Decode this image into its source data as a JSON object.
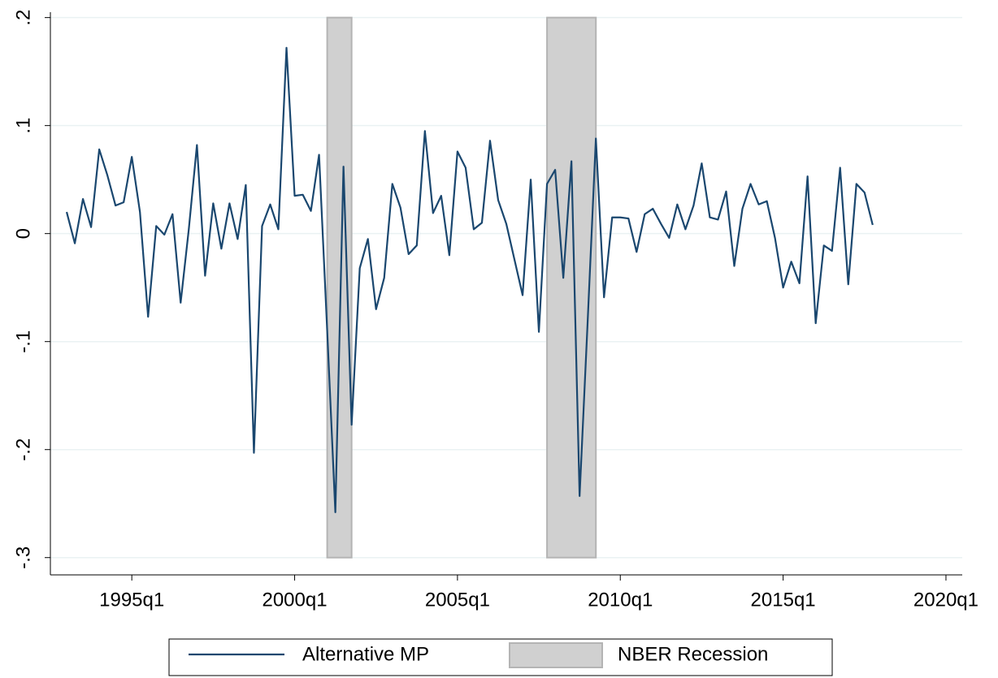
{
  "chart_data": {
    "type": "line",
    "x": [
      "1993q1",
      "1993q2",
      "1993q3",
      "1993q4",
      "1994q1",
      "1994q2",
      "1994q3",
      "1994q4",
      "1995q1",
      "1995q2",
      "1995q3",
      "1995q4",
      "1996q1",
      "1996q2",
      "1996q3",
      "1996q4",
      "1997q1",
      "1997q2",
      "1997q3",
      "1997q4",
      "1998q1",
      "1998q2",
      "1998q3",
      "1998q4",
      "1999q1",
      "1999q2",
      "1999q3",
      "1999q4",
      "2000q1",
      "2000q2",
      "2000q3",
      "2000q4",
      "2001q1",
      "2001q2",
      "2001q3",
      "2001q4",
      "2002q1",
      "2002q2",
      "2002q3",
      "2002q4",
      "2003q1",
      "2003q2",
      "2003q3",
      "2003q4",
      "2004q1",
      "2004q2",
      "2004q3",
      "2004q4",
      "2005q1",
      "2005q2",
      "2005q3",
      "2005q4",
      "2006q1",
      "2006q2",
      "2006q3",
      "2006q4",
      "2007q1",
      "2007q2",
      "2007q3",
      "2007q4",
      "2008q1",
      "2008q2",
      "2008q3",
      "2008q4",
      "2009q1",
      "2009q2",
      "2009q3",
      "2009q4",
      "2010q1",
      "2010q2",
      "2010q3",
      "2010q4",
      "2011q1",
      "2011q2",
      "2011q3",
      "2011q4",
      "2012q1",
      "2012q2",
      "2012q3",
      "2012q4",
      "2013q1",
      "2013q2",
      "2013q3",
      "2013q4",
      "2014q1",
      "2014q2",
      "2014q3",
      "2014q4",
      "2015q1",
      "2015q2",
      "2015q3",
      "2015q4",
      "2016q1",
      "2016q2",
      "2016q3",
      "2016q4",
      "2017q1",
      "2017q2",
      "2017q3",
      "2017q4"
    ],
    "series": [
      {
        "name": "Alternative MP",
        "color": "#1a476f",
        "values": [
          0.02,
          -0.009,
          0.032,
          0.006,
          0.078,
          0.054,
          0.026,
          0.029,
          0.071,
          0.02,
          -0.077,
          0.007,
          -0.001,
          0.018,
          -0.064,
          0.004,
          0.082,
          -0.039,
          0.028,
          -0.014,
          0.028,
          -0.005,
          0.045,
          -0.203,
          0.007,
          0.027,
          0.004,
          0.172,
          0.035,
          0.036,
          0.021,
          0.073,
          -0.09,
          -0.258,
          0.062,
          -0.177,
          -0.032,
          -0.005,
          -0.07,
          -0.041,
          0.046,
          0.024,
          -0.019,
          -0.011,
          0.095,
          0.019,
          0.035,
          -0.02,
          0.076,
          0.061,
          0.004,
          0.01,
          0.086,
          0.031,
          0.009,
          -0.024,
          -0.057,
          0.05,
          -0.091,
          0.046,
          0.059,
          -0.041,
          0.067,
          -0.243,
          -0.08,
          0.088,
          -0.059,
          0.015,
          0.015,
          0.014,
          -0.017,
          0.018,
          0.023,
          0.009,
          -0.004,
          0.027,
          0.004,
          0.026,
          0.065,
          0.015,
          0.013,
          0.039,
          -0.03,
          0.023,
          0.046,
          0.027,
          0.03,
          -0.004,
          -0.05,
          -0.026,
          -0.046,
          0.053,
          -0.083,
          -0.011,
          -0.016,
          0.061,
          -0.047,
          0.046,
          0.038,
          0.008
        ]
      }
    ],
    "recession": {
      "name": "NBER Recession",
      "color": "#d0d0d0",
      "range": [
        -0.3,
        0.2
      ],
      "periods": [
        [
          "2001q1",
          "2001q4"
        ],
        [
          "2007q4",
          "2009q2"
        ]
      ]
    },
    "xlim": [
      "1992q3",
      "2020q3"
    ],
    "xticks": [
      "1995q1",
      "2000q1",
      "2005q1",
      "2010q1",
      "2015q1",
      "2020q1"
    ],
    "ylim": [
      -0.316,
      0.205
    ],
    "yticks": [
      {
        "value": -0.3,
        "label": "-.3"
      },
      {
        "value": -0.2,
        "label": "-.2"
      },
      {
        "value": -0.1,
        "label": "-.1"
      },
      0,
      {
        "value": 0.1,
        "label": ".1"
      },
      {
        "value": 0.2,
        "label": ".2"
      }
    ],
    "grid": true
  }
}
